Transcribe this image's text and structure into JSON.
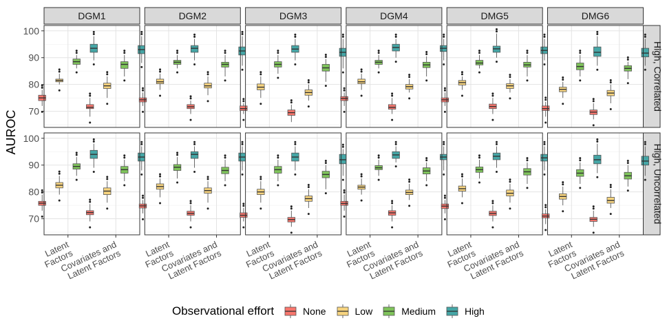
{
  "chart_data": {
    "type": "boxplot",
    "ylabel": "AUROC",
    "ylim": [
      64,
      102
    ],
    "yticks": [
      70,
      80,
      90,
      100
    ],
    "categories": [
      "Latent Factors",
      "Covariates and Latent Factors"
    ],
    "category_lines": [
      [
        "Latent",
        "Factors"
      ],
      [
        "Covariates and",
        "Latent Factors"
      ]
    ],
    "facet_columns": [
      "DGM1",
      "DGM2",
      "DGM3",
      "DGM4",
      "DMG5",
      "DMG6"
    ],
    "facet_rows": [
      "High, Correlated",
      "High, Uncorrelated"
    ],
    "legend": {
      "title": "Observational effort",
      "levels": [
        "None",
        "Low",
        "Medium",
        "High"
      ],
      "colors": [
        "#F8766D",
        "#F7D47F",
        "#7FC45B",
        "#45A6A6"
      ]
    },
    "colors": {
      "None": "#F8766D",
      "Low": "#F7D47F",
      "Medium": "#7FC45B",
      "High": "#45A6A6"
    },
    "boxes": [
      [
        [
          [
            [
              72,
              74,
              75,
              76,
              78
            ],
            [
              80,
              81,
              81.5,
              82,
              84
            ],
            [
              86,
              87.5,
              88.5,
              89.5,
              91
            ],
            [
              89,
              92,
              93.5,
              95,
              98
            ]
          ],
          [
            [
              68,
              71,
              71.5,
              72.5,
              75
            ],
            [
              75,
              78.5,
              79.5,
              80.5,
              83
            ],
            [
              83,
              86,
              87.5,
              88.5,
              91
            ],
            [
              88,
              91.5,
              93,
              94.5,
              98
            ]
          ]
        ],
        [
          [
            [
              73,
              75,
              75.8,
              76.5,
              79
            ],
            [
              79,
              81.5,
              82.5,
              83.5,
              86
            ],
            [
              86,
              88.5,
              89.5,
              90.5,
              93
            ],
            [
              89,
              92.5,
              94,
              95.5,
              98
            ]
          ],
          [
            [
              69,
              71.5,
              72.3,
              73,
              75.5
            ],
            [
              76,
              79,
              80.3,
              81.5,
              84
            ],
            [
              84,
              87,
              88.3,
              89.5,
              92
            ],
            [
              88,
              91.5,
              93,
              94.5,
              97
            ]
          ]
        ]
      ],
      [
        [
          [
            [
              72,
              73.5,
              74.3,
              75,
              77
            ],
            [
              78,
              80.3,
              81,
              82,
              84
            ],
            [
              86,
              87.5,
              88.3,
              89,
              91
            ],
            [
              89,
              92,
              93.5,
              94.5,
              97
            ]
          ],
          [
            [
              69,
              71,
              71.7,
              72.5,
              74
            ],
            [
              76,
              78.7,
              79.5,
              80.5,
              83
            ],
            [
              83,
              86.5,
              87.5,
              88.3,
              91
            ],
            [
              87,
              91,
              92.5,
              94,
              98
            ]
          ]
        ],
        [
          [
            [
              72,
              74,
              74.8,
              75.5,
              77
            ],
            [
              78,
              81,
              82,
              83,
              85
            ],
            [
              85,
              88,
              89.2,
              90.2,
              93
            ],
            [
              89,
              92.5,
              94,
              95,
              97
            ]
          ],
          [
            [
              69,
              71.3,
              72,
              72.8,
              75
            ],
            [
              76,
              79.5,
              80.5,
              81.5,
              84
            ],
            [
              84,
              86.8,
              88,
              89.2,
              92
            ],
            [
              88,
              91.5,
              93,
              94.5,
              97
            ]
          ]
        ]
      ],
      [
        [
          [
            [
              69,
              70.3,
              71,
              72,
              73
            ],
            [
              75,
              78,
              79,
              80.2,
              83
            ],
            [
              84,
              86.5,
              87.5,
              88.5,
              91
            ],
            [
              89,
              92,
              93.2,
              94.5,
              97
            ]
          ],
          [
            [
              66,
              68.5,
              69.5,
              70.5,
              72.5
            ],
            [
              74,
              76,
              77,
              78,
              80
            ],
            [
              81,
              85,
              86.2,
              87.5,
              89.5
            ],
            [
              86,
              90.5,
              92,
              93.5,
              97
            ]
          ]
        ],
        [
          [
            [
              69,
              70.5,
              71.3,
              72.2,
              74
            ],
            [
              76,
              79,
              80,
              81,
              84
            ],
            [
              84,
              87,
              88.3,
              89.5,
              92
            ],
            [
              88,
              91.5,
              93,
              94.5,
              97
            ]
          ],
          [
            [
              67,
              68.8,
              69.7,
              70.5,
              73
            ],
            [
              74,
              76.5,
              77.5,
              78.5,
              81
            ],
            [
              81,
              85.3,
              86.5,
              87.7,
              90
            ],
            [
              86,
              90.5,
              92,
              94,
              96
            ]
          ]
        ]
      ],
      [
        [
          [
            [
              72,
              74,
              74.8,
              75.5,
              77
            ],
            [
              78,
              80.3,
              81,
              82,
              84
            ],
            [
              86,
              87.5,
              88.3,
              89,
              91
            ],
            [
              90,
              92.5,
              93.8,
              95,
              97
            ]
          ],
          [
            [
              69,
              70.8,
              71.5,
              72.5,
              75
            ],
            [
              77,
              78.3,
              79.2,
              80,
              82
            ],
            [
              83,
              86.3,
              87.3,
              88.3,
              90.5
            ],
            [
              89,
              92.3,
              93.5,
              94.5,
              97
            ]
          ]
        ],
        [
          [
            [
              73,
              75,
              75.7,
              76.5,
              79
            ],
            [
              79,
              81,
              81.8,
              82.5,
              85
            ],
            [
              86,
              88.3,
              89,
              89.8,
              92
            ],
            [
              91,
              92.5,
              93.8,
              95,
              97
            ]
          ],
          [
            [
              69,
              71.3,
              72.2,
              73,
              75
            ],
            [
              77,
              79,
              79.8,
              80.7,
              83
            ],
            [
              84,
              86.7,
              87.8,
              89,
              91
            ],
            [
              88,
              92,
              93,
              94,
              97
            ]
          ]
        ]
      ],
      [
        [
          [
            [
              72,
              73.5,
              74.3,
              75,
              77
            ],
            [
              78,
              79.8,
              80.7,
              81.5,
              83
            ],
            [
              86,
              87.3,
              88,
              89,
              91
            ],
            [
              90,
              92,
              93.3,
              94.3,
              99
            ]
          ],
          [
            [
              69,
              71,
              71.8,
              72.7,
              75
            ],
            [
              77,
              78.5,
              79.5,
              80.3,
              82
            ],
            [
              83,
              86.5,
              87.3,
              88.3,
              91
            ],
            [
              89,
              91.5,
              92.7,
              94,
              97
            ]
          ]
        ],
        [
          [
            [
              72,
              73.8,
              74.7,
              75.5,
              77
            ],
            [
              78,
              80.3,
              81.2,
              82.2,
              85
            ],
            [
              85,
              87.3,
              88.3,
              89.3,
              92
            ],
            [
              89,
              92,
              93.3,
              94.5,
              97
            ]
          ],
          [
            [
              69,
              71.2,
              72,
              72.8,
              75
            ],
            [
              76,
              78.5,
              79.5,
              80.7,
              83
            ],
            [
              83,
              86.3,
              87.5,
              88.7,
              91
            ],
            [
              88,
              91.5,
              92.7,
              94,
              97
            ]
          ]
        ]
      ],
      [
        [
          [
            [
              68,
              70.3,
              71,
              72,
              73.5
            ],
            [
              75,
              77.3,
              78.2,
              79,
              81
            ],
            [
              83,
              85.5,
              86.7,
              88,
              91
            ],
            [
              87,
              90.5,
              92,
              94,
              98
            ]
          ],
          [
            [
              67,
              68.8,
              69.7,
              70.5,
              73
            ],
            [
              73,
              75.8,
              76.8,
              77.8,
              80
            ],
            [
              82,
              85,
              86,
              87,
              88.5
            ],
            [
              87,
              90.3,
              91.7,
              93.5,
              97
            ]
          ]
        ],
        [
          [
            [
              68,
              70.3,
              71,
              71.8,
              73.5
            ],
            [
              75,
              77.3,
              78.3,
              79.3,
              82
            ],
            [
              83,
              85.8,
              87,
              88.3,
              91
            ],
            [
              87,
              90.5,
              92,
              93.7,
              98
            ]
          ],
          [
            [
              67,
              69,
              69.8,
              70.5,
              73
            ],
            [
              74,
              75.8,
              76.8,
              78,
              81
            ],
            [
              82,
              84.8,
              86,
              87.3,
              90
            ],
            [
              86,
              90,
              91.5,
              93.3,
              97
            ]
          ]
        ]
      ]
    ]
  }
}
